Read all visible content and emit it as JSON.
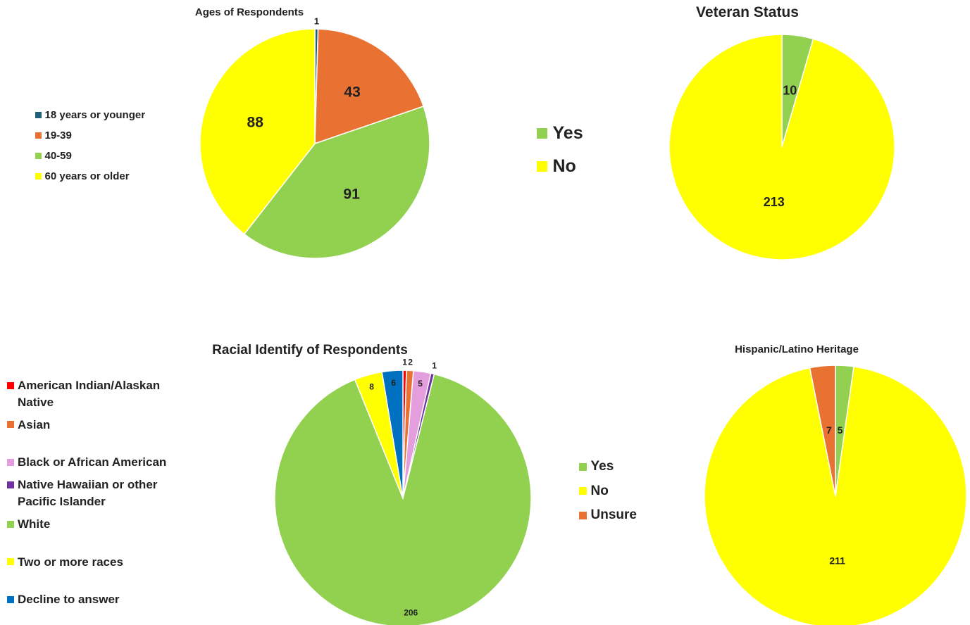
{
  "chart_data": [
    {
      "type": "pie",
      "title": "Ages of Respondents",
      "categories": [
        "18 years or younger",
        "19-39",
        "40-59",
        "60 years or older"
      ],
      "values": [
        1,
        43,
        91,
        88
      ],
      "colors": [
        "#1f5f7a",
        "#e97132",
        "#92d050",
        "#ffff00"
      ]
    },
    {
      "type": "pie",
      "title": "Veteran Status",
      "categories": [
        "Yes",
        "No"
      ],
      "values": [
        10,
        213
      ],
      "colors": [
        "#92d050",
        "#ffff00"
      ]
    },
    {
      "type": "pie",
      "title": "Racial Identify of Respondents",
      "categories": [
        "American Indian/Alaskan Native",
        "Asian",
        "Black or African American",
        "Native Hawaiian or other Pacific Islander",
        "White",
        "Two or more races",
        "Decline to answer"
      ],
      "values": [
        1,
        2,
        5,
        1,
        206,
        8,
        6
      ],
      "colors": [
        "#ff0000",
        "#e97132",
        "#e59edd",
        "#7030a0",
        "#92d050",
        "#ffff00",
        "#0070c0"
      ]
    },
    {
      "type": "pie",
      "title": "Hispanic/Latino Heritage",
      "categories": [
        "Yes",
        "No",
        "Unsure"
      ],
      "values": [
        5,
        211,
        7
      ],
      "colors": [
        "#92d050",
        "#ffff00",
        "#e97132"
      ]
    }
  ]
}
